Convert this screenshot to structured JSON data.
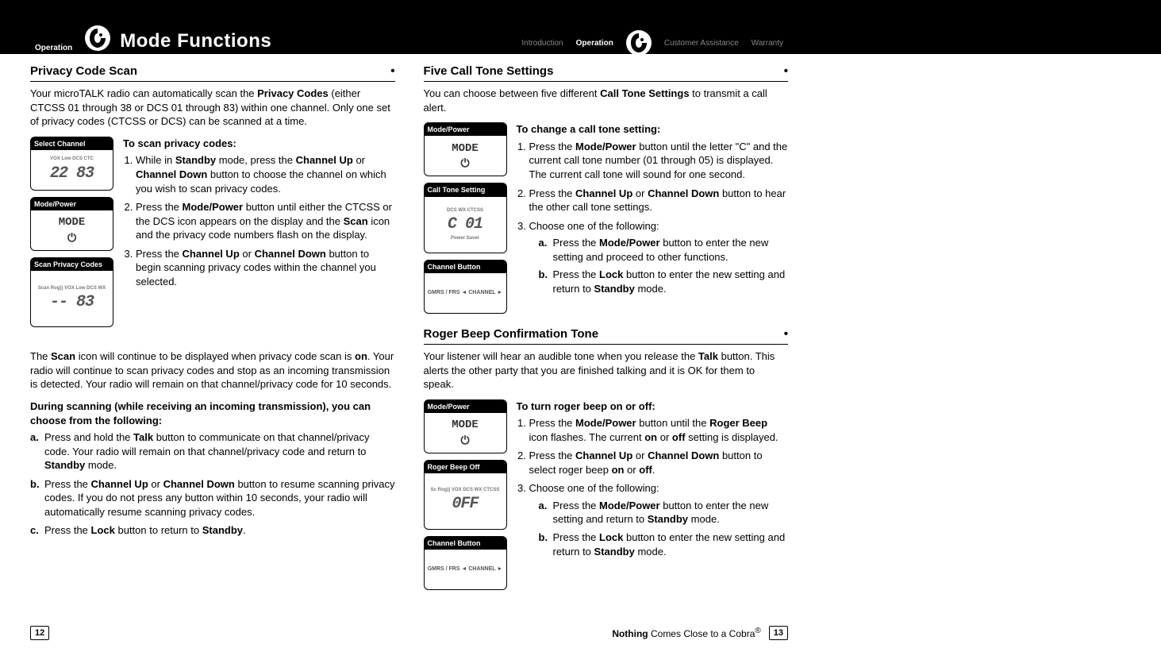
{
  "header": {
    "left_tab": "Operation",
    "title": "Mode Functions",
    "nav": {
      "intro": "Introduction",
      "operation": "Operation",
      "assistance": "Customer Assistance",
      "warranty": "Warranty"
    }
  },
  "left_col": {
    "heading": "Privacy Code Scan",
    "intro": "Your microTALK radio can automatically scan the <b>Privacy Codes</b> (either CTCSS 01 through 38 or DCS 01 through 83) within one channel. Only one set of privacy codes (CTCSS or DCS) can be scanned at a time.",
    "scan_heading": "To scan privacy codes:",
    "step1": "While in <b>Standby</b> mode, press the <b>Channel Up</b> or <b>Channel Down</b> button to choose the channel on which you wish to scan privacy codes.",
    "step2": "Press the <b>Mode/Power</b> button until either the CTCSS or the DCS icon appears on the display and the <b>Scan</b> icon and the privacy code numbers flash on the display.",
    "step3": "Press the <b>Channel Up</b> or <b>Channel Down</b> button to begin scanning privacy codes within the channel you selected.",
    "diag1_label": "Select Channel",
    "diag1_body_top": "VOX Low   DCS CTC",
    "diag1_body_main": "22 83",
    "diag2_label": "Mode/Power",
    "diag3_label": "Scan Privacy Codes",
    "diag3_body_top": "Scan Rog)) VOX Low DCS WX",
    "diag3_body_main": "-- 83",
    "scan_note": "The <b>Scan</b> icon will continue to be displayed when privacy code scan is <b>on</b>. Your radio will continue to scan privacy codes and stop as an incoming transmission is detected. Your radio will remain on that channel/privacy code for 10 seconds.",
    "during_heading": "During scanning (while receiving an incoming transmission), you can choose from the following:",
    "opt_a": "Press and hold the <b>Talk</b> button to communicate on that channel/privacy code. Your radio will remain on that channel/privacy code and return to <b>Standby</b> mode.",
    "opt_b": "Press the <b>Channel Up</b> or <b>Channel Down</b> button to resume scanning privacy codes. If you do not press any button within 10 seconds, your radio will automatically resume scanning privacy codes.",
    "opt_c": "Press the <b>Lock</b> button to return to <b>Standby</b>."
  },
  "right_col": {
    "heading1": "Five Call Tone Settings",
    "intro1": "You can choose between five different <b>Call Tone Settings</b> to transmit a call alert.",
    "change_heading": "To change a call tone setting:",
    "ct_step1": "Press the <b>Mode/Power</b> button until the letter \"C\" and the current call tone number (01 through 05) is displayed. The current call tone will sound for one second.",
    "ct_step2": "Press the <b>Channel Up</b> or <b>Channel Down</b> button to hear the other call tone settings.",
    "ct_step3": "Choose one of the following:",
    "ct_opt_a": "Press the <b>Mode/Power</b> button to enter the new setting and proceed to other functions.",
    "ct_opt_b": "Press the <b>Lock</b> button to enter the new setting and return to <b>Standby</b> mode.",
    "ct_diag1_label": "Mode/Power",
    "ct_diag2_label": "Call Tone Setting",
    "ct_diag2_body_top": "DCS WX CTCSS",
    "ct_diag2_body_main": "C 01",
    "ct_diag2_body_bot": "Power Saver",
    "ct_diag3_label": "Channel Button",
    "ct_diag3_body": "GMRS / FRS ◄ CHANNEL ►",
    "heading2": "Roger Beep Confirmation Tone",
    "intro2": "Your listener will hear an audible tone when you release the <b>Talk</b> button. This alerts the other party that you are finished talking and it is OK for them to speak.",
    "rb_heading": "To turn roger beep on or off:",
    "rb_step1": "Press the <b>Mode/Power</b> button until the <b>Roger Beep</b> icon flashes. The current <b>on</b> or <b>off</b> setting is displayed.",
    "rb_step2": "Press the <b>Channel Up</b> or <b>Channel Down</b> button to select roger beep <b>on</b> or <b>off</b>.",
    "rb_step3": "Choose one of the following:",
    "rb_opt_a": "Press the <b>Mode/Power</b> button to enter the new setting and return to <b>Standby</b> mode.",
    "rb_opt_b": "Press the <b>Lock</b> button to enter the new setting and return to <b>Standby</b> mode.",
    "rb_diag1_label": "Mode/Power",
    "rb_diag2_label": "Roger Beep Off",
    "rb_diag2_body_top": "Sc Rog)) VOX DCS WX CTCSS",
    "rb_diag2_body_main": "0FF",
    "rb_diag3_label": "Channel Button",
    "rb_diag3_body": "GMRS / FRS ◄ CHANNEL ►"
  },
  "footer": {
    "left_page": "12",
    "right_page": "13",
    "tagline": "<b>Nothing</b> Comes Close to a Cobra<sup>®</sup>"
  },
  "colors": {
    "header_bg": "#000000",
    "text": "#000000",
    "nav_inactive": "#888888",
    "diagram_text": "#777777"
  }
}
